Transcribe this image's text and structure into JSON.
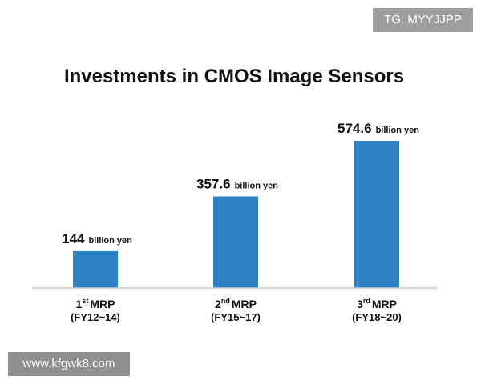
{
  "watermarks": {
    "top_right": "TG: MYYJJPP",
    "bottom_left": "www.kfgwk8.com"
  },
  "chart_data": {
    "type": "bar",
    "title": "Investments in CMOS Image Sensors",
    "unit": "billion yen",
    "categories": [
      {
        "ordinal": "1",
        "suffix": "st",
        "label": "MRP",
        "period": "(FY12~14)"
      },
      {
        "ordinal": "2",
        "suffix": "nd",
        "label": "MRP",
        "period": "(FY15~17)"
      },
      {
        "ordinal": "3",
        "suffix": "rd",
        "label": "MRP",
        "period": "(FY18~20)"
      }
    ],
    "values": [
      144,
      357.6,
      574.6
    ],
    "value_labels": [
      "144",
      "357.6",
      "574.6"
    ],
    "ylim": [
      0,
      640
    ],
    "bar_color": "#2e83c6",
    "xlabel": "",
    "ylabel": "",
    "grid": false
  }
}
